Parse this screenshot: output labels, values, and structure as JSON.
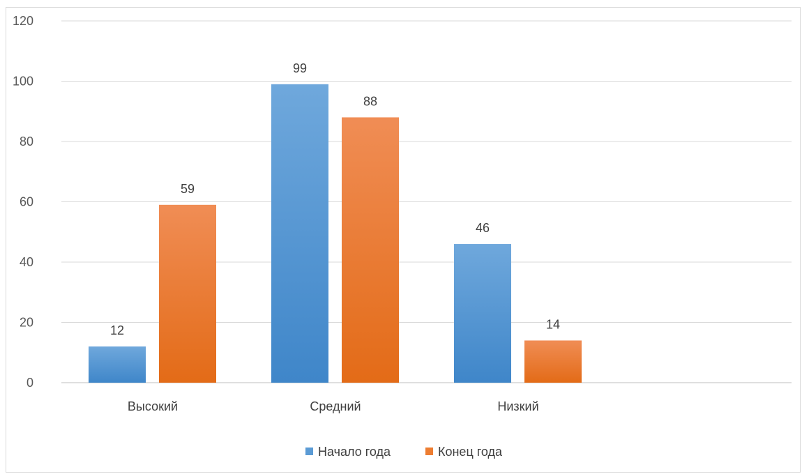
{
  "chart_data": {
    "type": "bar",
    "categories": [
      "Высокий",
      "Средний",
      "Низкий"
    ],
    "series": [
      {
        "name": "Начало года",
        "values": [
          12,
          99,
          46
        ],
        "color": "#5b9bd5"
      },
      {
        "name": "Конец года",
        "values": [
          59,
          88,
          14
        ],
        "color": "#ed7d31"
      }
    ],
    "title": "",
    "xlabel": "",
    "ylabel": "",
    "ylim": [
      0,
      120
    ],
    "yticks": [
      0,
      20,
      40,
      60,
      80,
      100,
      120
    ],
    "grid": true,
    "legend_position": "bottom",
    "data_labels": true
  }
}
